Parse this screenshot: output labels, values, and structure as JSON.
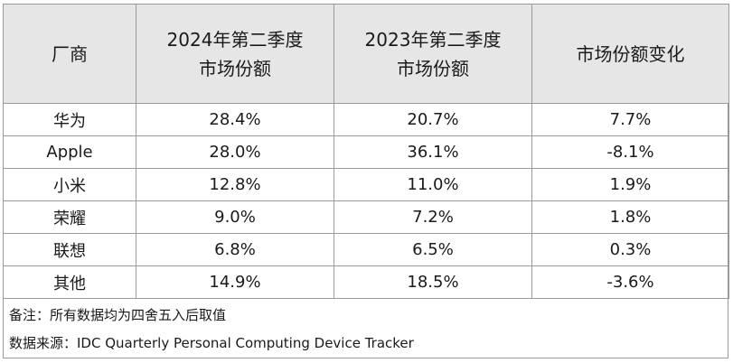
{
  "table": {
    "headers": [
      {
        "lines": [
          "厂商"
        ]
      },
      {
        "lines": [
          "2024年第二季度",
          "市场份额"
        ]
      },
      {
        "lines": [
          "2023年第二季度",
          "市场份额"
        ]
      },
      {
        "lines": [
          "市场份额变化"
        ]
      }
    ],
    "rows": [
      [
        "华为",
        "28.4%",
        "20.7%",
        "7.7%"
      ],
      [
        "Apple",
        "28.0%",
        "36.1%",
        "-8.1%"
      ],
      [
        "小米",
        "12.8%",
        "11.0%",
        "1.9%"
      ],
      [
        "荣耀",
        "9.0%",
        "7.2%",
        "1.8%"
      ],
      [
        "联想",
        "6.8%",
        "6.5%",
        "0.3%"
      ],
      [
        "其他",
        "14.9%",
        "18.5%",
        "-3.6%"
      ]
    ]
  },
  "notes": {
    "remark": "备注：所有数据均为四舍五入后取值",
    "source": "数据来源：IDC Quarterly Personal Computing Device Tracker"
  },
  "colors": {
    "header_bg": "#e6e6e6",
    "border": "#9a9a9a",
    "text": "#1a1a1a"
  }
}
